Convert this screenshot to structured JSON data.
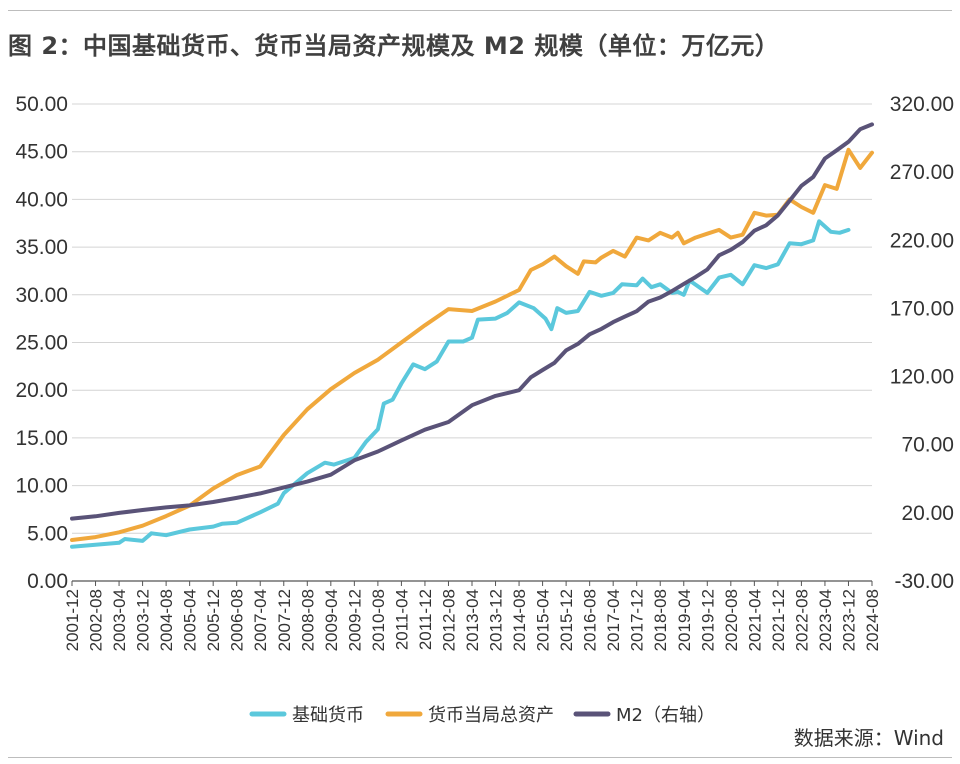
{
  "chart_data": {
    "type": "line",
    "title": "图 2：中国基础货币、货币当局资产规模及 M2 规模（单位：万亿元）",
    "x_start": "2001-12",
    "x_end": "2024-08",
    "x_ticks": [
      "2001-12",
      "2002-08",
      "2003-04",
      "2003-12",
      "2004-08",
      "2005-04",
      "2005-12",
      "2006-08",
      "2007-04",
      "2007-12",
      "2008-08",
      "2009-04",
      "2009-12",
      "2010-08",
      "2011-04",
      "2011-12",
      "2012-08",
      "2013-04",
      "2013-12",
      "2014-08",
      "2015-04",
      "2015-12",
      "2016-08",
      "2017-04",
      "2017-12",
      "2018-08",
      "2019-04",
      "2019-12",
      "2020-08",
      "2021-04",
      "2021-12",
      "2022-08",
      "2023-04",
      "2023-12",
      "2024-08"
    ],
    "y_left": {
      "min": 0,
      "max": 50,
      "step": 5,
      "ticks": [
        "0.00",
        "5.00",
        "10.00",
        "15.00",
        "20.00",
        "25.00",
        "30.00",
        "35.00",
        "40.00",
        "45.00",
        "50.00"
      ]
    },
    "y_right": {
      "min": -30,
      "max": 320,
      "step": 50,
      "ticks": [
        "-30.00",
        "20.00",
        "70.00",
        "120.00",
        "170.00",
        "220.00",
        "270.00",
        "320.00"
      ]
    },
    "grid": true,
    "legend_position": "bottom",
    "series": [
      {
        "name": "基础货币",
        "axis": "left",
        "color": "#5bc8dc",
        "points": [
          [
            "2001-12",
            3.6
          ],
          [
            "2002-08",
            3.8
          ],
          [
            "2003-04",
            4.0
          ],
          [
            "2003-06",
            4.4
          ],
          [
            "2003-12",
            4.2
          ],
          [
            "2004-03",
            5.0
          ],
          [
            "2004-08",
            4.8
          ],
          [
            "2005-04",
            5.4
          ],
          [
            "2005-12",
            5.7
          ],
          [
            "2006-03",
            6.0
          ],
          [
            "2006-08",
            6.1
          ],
          [
            "2007-04",
            7.2
          ],
          [
            "2007-10",
            8.1
          ],
          [
            "2007-12",
            9.2
          ],
          [
            "2008-08",
            11.3
          ],
          [
            "2009-02",
            12.4
          ],
          [
            "2009-05",
            12.2
          ],
          [
            "2009-12",
            12.9
          ],
          [
            "2010-04",
            14.6
          ],
          [
            "2010-08",
            15.9
          ],
          [
            "2010-10",
            18.6
          ],
          [
            "2011-01",
            19.0
          ],
          [
            "2011-04",
            20.7
          ],
          [
            "2011-08",
            22.7
          ],
          [
            "2011-12",
            22.2
          ],
          [
            "2012-04",
            23.0
          ],
          [
            "2012-08",
            25.1
          ],
          [
            "2013-01",
            25.1
          ],
          [
            "2013-04",
            25.5
          ],
          [
            "2013-06",
            27.4
          ],
          [
            "2013-12",
            27.5
          ],
          [
            "2014-04",
            28.1
          ],
          [
            "2014-08",
            29.2
          ],
          [
            "2015-01",
            28.6
          ],
          [
            "2015-05",
            27.5
          ],
          [
            "2015-07",
            26.4
          ],
          [
            "2015-09",
            28.6
          ],
          [
            "2015-12",
            28.1
          ],
          [
            "2016-04",
            28.3
          ],
          [
            "2016-08",
            30.3
          ],
          [
            "2016-12",
            29.9
          ],
          [
            "2017-04",
            30.2
          ],
          [
            "2017-07",
            31.1
          ],
          [
            "2017-12",
            31.0
          ],
          [
            "2018-02",
            31.7
          ],
          [
            "2018-05",
            30.8
          ],
          [
            "2018-08",
            31.1
          ],
          [
            "2018-12",
            30.2
          ],
          [
            "2019-02",
            30.3
          ],
          [
            "2019-04",
            30.0
          ],
          [
            "2019-06",
            31.5
          ],
          [
            "2019-12",
            30.2
          ],
          [
            "2020-04",
            31.8
          ],
          [
            "2020-08",
            32.1
          ],
          [
            "2020-12",
            31.1
          ],
          [
            "2021-04",
            33.1
          ],
          [
            "2021-08",
            32.8
          ],
          [
            "2021-12",
            33.2
          ],
          [
            "2022-04",
            35.4
          ],
          [
            "2022-08",
            35.3
          ],
          [
            "2022-12",
            35.7
          ],
          [
            "2023-02",
            37.7
          ],
          [
            "2023-06",
            36.6
          ],
          [
            "2023-09",
            36.5
          ],
          [
            "2023-12",
            36.8
          ]
        ]
      },
      {
        "name": "货币当局总资产",
        "axis": "left",
        "color": "#f0a83c",
        "points": [
          [
            "2001-12",
            4.3
          ],
          [
            "2002-08",
            4.6
          ],
          [
            "2003-04",
            5.1
          ],
          [
            "2003-12",
            5.8
          ],
          [
            "2004-08",
            6.8
          ],
          [
            "2005-04",
            7.9
          ],
          [
            "2005-12",
            9.7
          ],
          [
            "2006-08",
            11.1
          ],
          [
            "2007-04",
            12.0
          ],
          [
            "2007-12",
            15.3
          ],
          [
            "2008-08",
            18.0
          ],
          [
            "2009-04",
            20.1
          ],
          [
            "2009-12",
            21.8
          ],
          [
            "2010-08",
            23.2
          ],
          [
            "2011-04",
            25.0
          ],
          [
            "2011-12",
            26.8
          ],
          [
            "2012-08",
            28.5
          ],
          [
            "2013-04",
            28.3
          ],
          [
            "2013-12",
            29.3
          ],
          [
            "2014-08",
            30.5
          ],
          [
            "2014-12",
            32.6
          ],
          [
            "2015-04",
            33.2
          ],
          [
            "2015-08",
            34.0
          ],
          [
            "2015-12",
            33.0
          ],
          [
            "2016-04",
            32.2
          ],
          [
            "2016-06",
            33.5
          ],
          [
            "2016-10",
            33.4
          ],
          [
            "2016-12",
            33.9
          ],
          [
            "2017-04",
            34.6
          ],
          [
            "2017-08",
            34.0
          ],
          [
            "2017-12",
            36.0
          ],
          [
            "2018-04",
            35.7
          ],
          [
            "2018-08",
            36.5
          ],
          [
            "2018-12",
            36.0
          ],
          [
            "2019-02",
            36.5
          ],
          [
            "2019-04",
            35.4
          ],
          [
            "2019-08",
            36.0
          ],
          [
            "2019-12",
            36.4
          ],
          [
            "2020-04",
            36.8
          ],
          [
            "2020-08",
            36.0
          ],
          [
            "2020-12",
            36.3
          ],
          [
            "2021-04",
            38.6
          ],
          [
            "2021-08",
            38.3
          ],
          [
            "2021-12",
            38.4
          ],
          [
            "2022-04",
            40.0
          ],
          [
            "2022-08",
            39.2
          ],
          [
            "2022-12",
            38.6
          ],
          [
            "2023-04",
            41.5
          ],
          [
            "2023-08",
            41.1
          ],
          [
            "2023-12",
            45.2
          ],
          [
            "2024-04",
            43.3
          ],
          [
            "2024-08",
            44.9
          ]
        ]
      },
      {
        "name": "M2（右轴）",
        "axis": "right",
        "color": "#5a5378",
        "points": [
          [
            "2001-12",
            15.8
          ],
          [
            "2002-08",
            17.5
          ],
          [
            "2003-04",
            20.0
          ],
          [
            "2003-12",
            22.1
          ],
          [
            "2004-08",
            24.0
          ],
          [
            "2005-04",
            25.5
          ],
          [
            "2005-12",
            28.0
          ],
          [
            "2006-08",
            31.0
          ],
          [
            "2007-04",
            34.3
          ],
          [
            "2007-12",
            38.7
          ],
          [
            "2008-08",
            42.9
          ],
          [
            "2009-04",
            48.0
          ],
          [
            "2009-12",
            58.6
          ],
          [
            "2010-08",
            65.0
          ],
          [
            "2011-04",
            73.2
          ],
          [
            "2011-12",
            81.0
          ],
          [
            "2012-08",
            86.7
          ],
          [
            "2013-04,",
            99.0
          ],
          [
            "2013-12",
            105.8
          ],
          [
            "2014-08",
            110.0
          ],
          [
            "2014-12",
            119.5
          ],
          [
            "2015-04",
            124.8
          ],
          [
            "2015-08",
            130.0
          ],
          [
            "2015-12",
            139.2
          ],
          [
            "2016-04",
            144.0
          ],
          [
            "2016-08",
            151.0
          ],
          [
            "2016-12",
            155.0
          ],
          [
            "2017-04",
            160.0
          ],
          [
            "2017-08",
            164.0
          ],
          [
            "2017-12",
            168.0
          ],
          [
            "2018-04",
            175.0
          ],
          [
            "2018-08",
            178.0
          ],
          [
            "2018-12",
            182.7
          ],
          [
            "2019-04",
            188.0
          ],
          [
            "2019-08",
            193.0
          ],
          [
            "2019-12",
            198.6
          ],
          [
            "2020-04",
            209.0
          ],
          [
            "2020-08",
            213.0
          ],
          [
            "2020-12",
            218.7
          ],
          [
            "2021-04",
            227.0
          ],
          [
            "2021-08",
            231.0
          ],
          [
            "2021-12",
            238.3
          ],
          [
            "2022-04",
            249.0
          ],
          [
            "2022-08",
            260.0
          ],
          [
            "2022-12",
            266.4
          ],
          [
            "2023-04",
            280.0
          ],
          [
            "2023-08",
            286.0
          ],
          [
            "2023-12",
            292.3
          ],
          [
            "2024-04",
            301.5
          ],
          [
            "2024-08",
            305.0
          ]
        ]
      }
    ]
  },
  "source_text": "数据来源：Wind"
}
